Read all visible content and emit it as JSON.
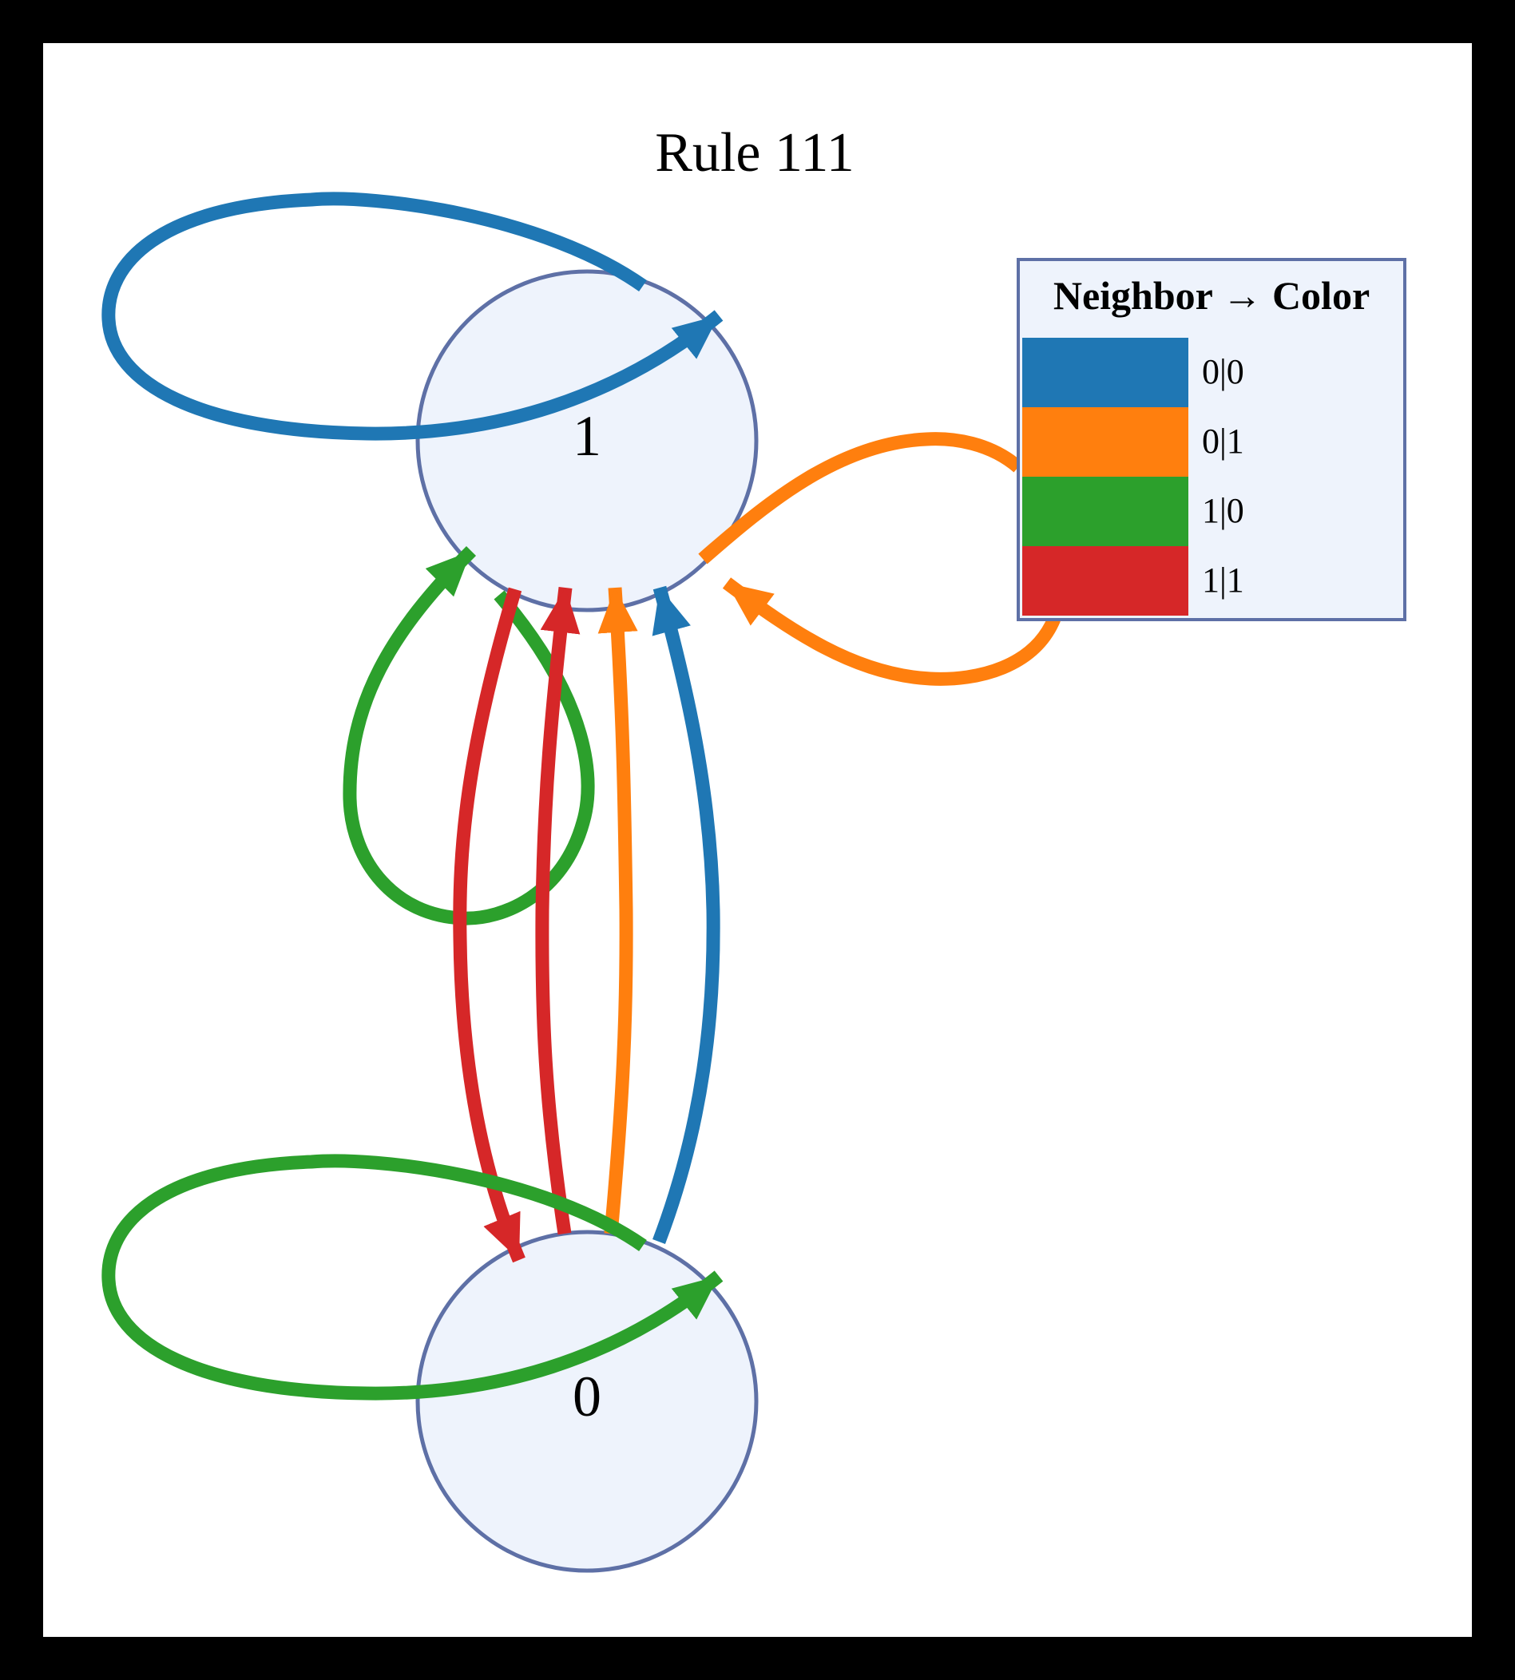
{
  "title": "Rule 111",
  "colors": {
    "background": "#000000",
    "canvas": "#ffffff",
    "node_fill": "#eef3fc",
    "node_stroke": "#5e70a6",
    "c00": "#1f77b4",
    "c01": "#ff7f0e",
    "c10": "#2ca02c",
    "c11": "#d62728"
  },
  "nodes": [
    {
      "id": "1",
      "label": "1"
    },
    {
      "id": "0",
      "label": "0"
    }
  ],
  "edges": [
    {
      "from": "1",
      "to": "1",
      "color": "c00"
    },
    {
      "from": "1",
      "to": "1",
      "color": "c10"
    },
    {
      "from": "1",
      "to": "1",
      "color": "c01"
    },
    {
      "from": "1",
      "to": "0",
      "color": "c11"
    },
    {
      "from": "0",
      "to": "1",
      "color": "c11"
    },
    {
      "from": "0",
      "to": "1",
      "color": "c01"
    },
    {
      "from": "0",
      "to": "1",
      "color": "c00"
    },
    {
      "from": "0",
      "to": "0",
      "color": "c10"
    }
  ],
  "legend": {
    "title": "Neighbor → Color",
    "items": [
      {
        "label": "0|0",
        "color": "c00"
      },
      {
        "label": "0|1",
        "color": "c01"
      },
      {
        "label": "1|0",
        "color": "c10"
      },
      {
        "label": "1|1",
        "color": "c11"
      }
    ]
  }
}
